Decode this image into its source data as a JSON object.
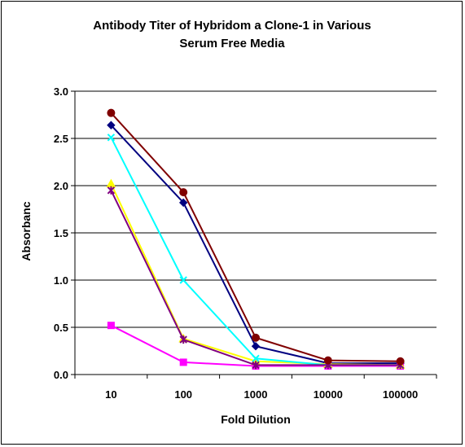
{
  "chart_data": {
    "type": "line",
    "title_lines": [
      "Antibody Titer of Hybridom a Clone-1 in Various",
      "Serum Free Media"
    ],
    "xlabel": "Fold Dilution",
    "ylabel": "Absorbanc",
    "categories": [
      "10",
      "100",
      "1000",
      "10000",
      "100000"
    ],
    "ylim": [
      0,
      3.0
    ],
    "yticks": [
      "0.0",
      "0.5",
      "1.0",
      "1.5",
      "2.0",
      "2.5",
      "3.0"
    ],
    "grid": true,
    "legend": "none",
    "series": [
      {
        "values": [
          2.64,
          1.82,
          0.3,
          0.12,
          0.12
        ],
        "color": "#000080",
        "marker": "diamond"
      },
      {
        "values": [
          0.52,
          0.13,
          0.09,
          0.09,
          0.09
        ],
        "color": "#FF00FF",
        "marker": "square"
      },
      {
        "values": [
          2.02,
          0.38,
          0.14,
          0.11,
          0.1
        ],
        "color": "#FFFF00",
        "marker": "triangle"
      },
      {
        "values": [
          2.51,
          1.0,
          0.17,
          0.1,
          0.1
        ],
        "color": "#00FFFF",
        "marker": "x"
      },
      {
        "values": [
          1.95,
          0.37,
          0.1,
          0.1,
          0.1
        ],
        "color": "#800080",
        "marker": "star"
      },
      {
        "values": [
          2.77,
          1.93,
          0.39,
          0.15,
          0.14
        ],
        "color": "#800000",
        "marker": "circle"
      }
    ]
  }
}
